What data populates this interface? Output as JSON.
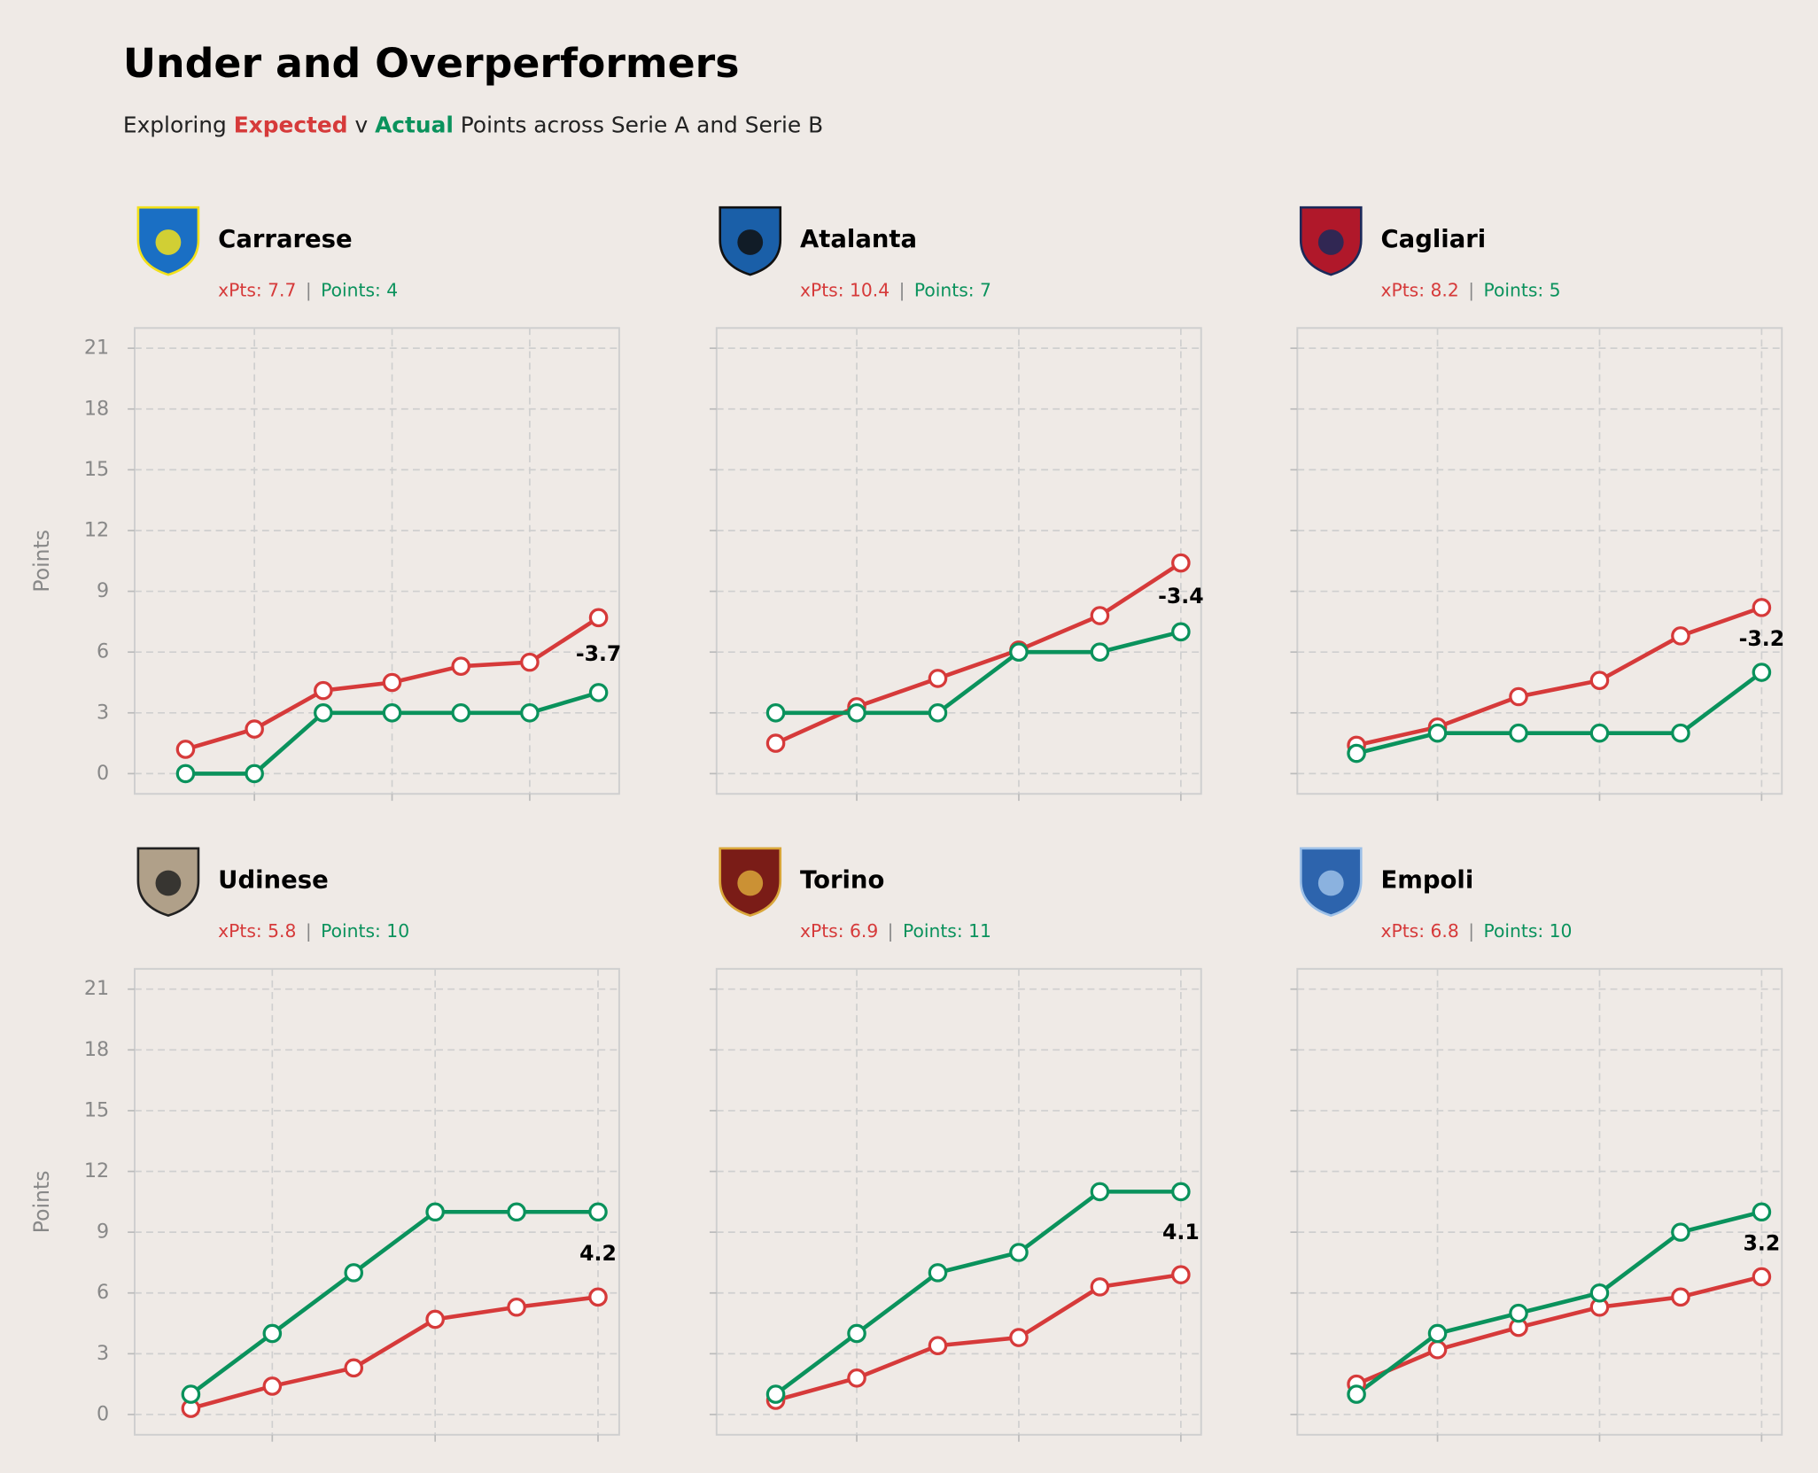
{
  "header": {
    "title": "Under and Overperformers",
    "subtitle": [
      "Exploring ",
      "Expected",
      " v ",
      "Actual",
      " Points across Serie A and Serie B"
    ],
    "separator": "|"
  },
  "chart_data": [
    {
      "type": "line",
      "title": "Carrarese",
      "xpts_text": "xPts: 7.7",
      "points_text": "Points: 4",
      "annotation": "-3.7",
      "ylabel": "Points",
      "x": [
        1,
        2,
        3,
        4,
        5,
        6,
        7
      ],
      "xlim": [
        0.26,
        7.3
      ],
      "xticks": [
        2,
        4,
        6
      ],
      "ylim": [
        -1,
        22
      ],
      "yticks": [
        0,
        3,
        6,
        9,
        12,
        15,
        18,
        21
      ],
      "grid": true,
      "series": [
        {
          "color": "#d63a3a",
          "values": [
            1.2,
            2.2,
            4.1,
            4.5,
            5.3,
            5.5,
            7.7
          ]
        },
        {
          "color": "#0a925c",
          "values": [
            0,
            0,
            3,
            3,
            3,
            3,
            4
          ]
        }
      ]
    },
    {
      "type": "line",
      "title": "Atalanta",
      "xpts_text": "xPts: 10.4",
      "points_text": "Points: 7",
      "annotation": "-3.4",
      "x": [
        1,
        2,
        3,
        4,
        5,
        6
      ],
      "xlim": [
        0.27,
        6.25
      ],
      "xticks": [
        2,
        4,
        6
      ],
      "ylim": [
        -1,
        22
      ],
      "yticks": [
        0,
        3,
        6,
        9,
        12,
        15,
        18,
        21
      ],
      "grid": true,
      "series": [
        {
          "color": "#d63a3a",
          "values": [
            1.5,
            3.3,
            4.7,
            6.1,
            7.8,
            10.4
          ]
        },
        {
          "color": "#0a925c",
          "values": [
            3,
            3,
            3,
            6,
            6,
            7
          ]
        }
      ]
    },
    {
      "type": "line",
      "title": "Cagliari",
      "xpts_text": "xPts: 8.2",
      "points_text": "Points: 5",
      "annotation": "-3.2",
      "x": [
        1,
        2,
        3,
        4,
        5,
        6
      ],
      "xlim": [
        0.27,
        6.25
      ],
      "xticks": [
        2,
        4,
        6
      ],
      "ylim": [
        -1,
        22
      ],
      "yticks": [
        0,
        3,
        6,
        9,
        12,
        15,
        18,
        21
      ],
      "grid": true,
      "series": [
        {
          "color": "#d63a3a",
          "values": [
            1.4,
            2.3,
            3.8,
            4.6,
            6.8,
            8.2
          ]
        },
        {
          "color": "#0a925c",
          "values": [
            1,
            2,
            2,
            2,
            2,
            5
          ]
        }
      ]
    },
    {
      "type": "line",
      "title": "Udinese",
      "xpts_text": "xPts: 5.8",
      "points_text": "Points: 10",
      "annotation": "4.2",
      "ylabel": "Points",
      "x": [
        1,
        2,
        3,
        4,
        5,
        6
      ],
      "xlim": [
        0.31,
        6.26
      ],
      "xticks": [
        2,
        4,
        6
      ],
      "ylim": [
        -1,
        22
      ],
      "yticks": [
        0,
        3,
        6,
        9,
        12,
        15,
        18,
        21
      ],
      "grid": true,
      "series": [
        {
          "color": "#d63a3a",
          "values": [
            0.3,
            1.4,
            2.3,
            4.7,
            5.3,
            5.8
          ]
        },
        {
          "color": "#0a925c",
          "values": [
            1,
            4,
            7,
            10,
            10,
            10
          ]
        }
      ]
    },
    {
      "type": "line",
      "title": "Torino",
      "xpts_text": "xPts: 6.9",
      "points_text": "Points: 11",
      "annotation": "4.1",
      "x": [
        1,
        2,
        3,
        4,
        5,
        6
      ],
      "xlim": [
        0.27,
        6.25
      ],
      "xticks": [
        2,
        4,
        6
      ],
      "ylim": [
        -1,
        22
      ],
      "yticks": [
        0,
        3,
        6,
        9,
        12,
        15,
        18,
        21
      ],
      "grid": true,
      "series": [
        {
          "color": "#d63a3a",
          "values": [
            0.7,
            1.8,
            3.4,
            3.8,
            6.3,
            6.9
          ]
        },
        {
          "color": "#0a925c",
          "values": [
            1,
            4,
            7,
            8,
            11,
            11
          ]
        }
      ]
    },
    {
      "type": "line",
      "title": "Empoli",
      "xpts_text": "xPts: 6.8",
      "points_text": "Points: 10",
      "annotation": "3.2",
      "x": [
        1,
        2,
        3,
        4,
        5,
        6
      ],
      "xlim": [
        0.27,
        6.25
      ],
      "xticks": [
        2,
        4,
        6
      ],
      "ylim": [
        -1,
        22
      ],
      "yticks": [
        0,
        3,
        6,
        9,
        12,
        15,
        18,
        21
      ],
      "grid": true,
      "series": [
        {
          "color": "#d63a3a",
          "values": [
            1.5,
            3.2,
            4.3,
            5.3,
            5.8,
            6.8
          ]
        },
        {
          "color": "#0a925c",
          "values": [
            1,
            4,
            5,
            6,
            9,
            10
          ]
        }
      ]
    }
  ]
}
